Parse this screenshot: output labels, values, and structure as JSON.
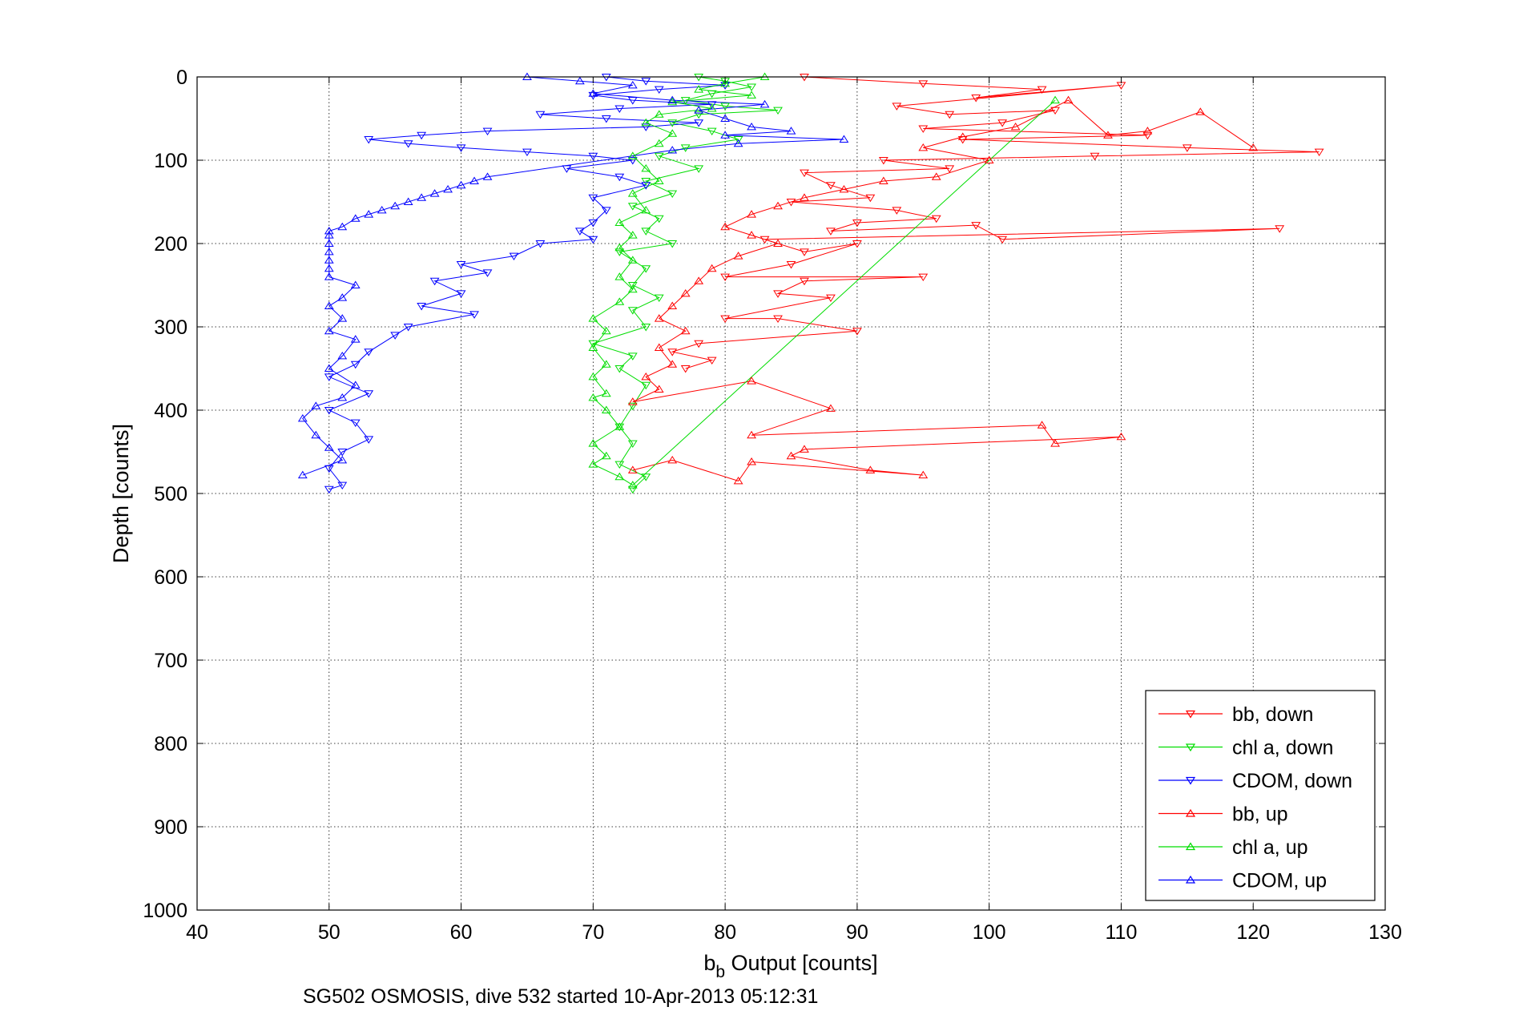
{
  "chart_data": {
    "type": "scatter",
    "title": "",
    "xlabel_main": "b",
    "xlabel_sub": "b",
    "xlabel_rest": " Output [counts]",
    "ylabel": "Depth [counts]",
    "caption": "SG502 OSMOSIS, dive 532 started 10-Apr-2013 05:12:31",
    "xlim": [
      40,
      130
    ],
    "ylim": [
      0,
      1000
    ],
    "y_reversed": true,
    "grid": true,
    "legend_position": "bottom-right",
    "xticks": [
      "40",
      "50",
      "60",
      "70",
      "80",
      "90",
      "100",
      "110",
      "120",
      "130"
    ],
    "yticks": [
      "0",
      "100",
      "200",
      "300",
      "400",
      "500",
      "600",
      "700",
      "800",
      "900",
      "1000"
    ],
    "series": [
      {
        "name": "bb, down",
        "color": "#ff0000",
        "marker": "triangle-down",
        "points": [
          [
            86,
            0
          ],
          [
            95,
            8
          ],
          [
            104,
            15
          ],
          [
            99,
            25
          ],
          [
            110,
            10
          ],
          [
            93,
            35
          ],
          [
            97,
            45
          ],
          [
            105,
            40
          ],
          [
            101,
            55
          ],
          [
            95,
            62
          ],
          [
            112,
            70
          ],
          [
            98,
            75
          ],
          [
            115,
            85
          ],
          [
            125,
            90
          ],
          [
            108,
            95
          ],
          [
            92,
            100
          ],
          [
            97,
            110
          ],
          [
            86,
            115
          ],
          [
            88,
            130
          ],
          [
            91,
            145
          ],
          [
            85,
            150
          ],
          [
            93,
            160
          ],
          [
            96,
            170
          ],
          [
            90,
            175
          ],
          [
            88,
            185
          ],
          [
            99,
            178
          ],
          [
            101,
            195
          ],
          [
            122,
            182
          ],
          [
            83,
            195
          ],
          [
            86,
            210
          ],
          [
            90,
            200
          ],
          [
            85,
            225
          ],
          [
            80,
            240
          ],
          [
            95,
            240
          ],
          [
            86,
            245
          ],
          [
            84,
            260
          ],
          [
            88,
            265
          ],
          [
            80,
            290
          ],
          [
            84,
            290
          ],
          [
            90,
            305
          ],
          [
            78,
            320
          ],
          [
            76,
            330
          ],
          [
            79,
            340
          ],
          [
            77,
            350
          ]
        ]
      },
      {
        "name": "chl a, down",
        "color": "#00dd00",
        "marker": "triangle-down",
        "points": [
          [
            78,
            0
          ],
          [
            80,
            5
          ],
          [
            82,
            12
          ],
          [
            79,
            20
          ],
          [
            77,
            28
          ],
          [
            80,
            35
          ],
          [
            84,
            40
          ],
          [
            78,
            45
          ],
          [
            76,
            55
          ],
          [
            79,
            65
          ],
          [
            81,
            75
          ],
          [
            77,
            85
          ],
          [
            75,
            95
          ],
          [
            78,
            110
          ],
          [
            74,
            125
          ],
          [
            76,
            140
          ],
          [
            73,
            155
          ],
          [
            75,
            170
          ],
          [
            74,
            185
          ],
          [
            76,
            200
          ],
          [
            72,
            210
          ],
          [
            74,
            230
          ],
          [
            73,
            250
          ],
          [
            75,
            265
          ],
          [
            73,
            280
          ],
          [
            74,
            300
          ],
          [
            70,
            320
          ],
          [
            73,
            335
          ],
          [
            72,
            350
          ],
          [
            74,
            370
          ],
          [
            73,
            395
          ],
          [
            72,
            420
          ],
          [
            73,
            440
          ],
          [
            72,
            465
          ],
          [
            74,
            480
          ],
          [
            73,
            495
          ]
        ]
      },
      {
        "name": "CDOM, down",
        "color": "#0000ff",
        "marker": "triangle-down",
        "points": [
          [
            71,
            0
          ],
          [
            74,
            5
          ],
          [
            80,
            10
          ],
          [
            75,
            15
          ],
          [
            70,
            22
          ],
          [
            73,
            28
          ],
          [
            79,
            33
          ],
          [
            72,
            38
          ],
          [
            66,
            45
          ],
          [
            71,
            50
          ],
          [
            78,
            55
          ],
          [
            74,
            60
          ],
          [
            62,
            65
          ],
          [
            57,
            70
          ],
          [
            53,
            75
          ],
          [
            56,
            80
          ],
          [
            60,
            85
          ],
          [
            65,
            90
          ],
          [
            70,
            95
          ],
          [
            73,
            100
          ],
          [
            68,
            110
          ],
          [
            72,
            120
          ],
          [
            74,
            130
          ],
          [
            70,
            145
          ],
          [
            71,
            160
          ],
          [
            70,
            175
          ],
          [
            69,
            185
          ],
          [
            70,
            195
          ],
          [
            66,
            200
          ],
          [
            64,
            215
          ],
          [
            60,
            225
          ],
          [
            62,
            235
          ],
          [
            58,
            245
          ],
          [
            60,
            260
          ],
          [
            57,
            275
          ],
          [
            61,
            285
          ],
          [
            56,
            300
          ],
          [
            55,
            310
          ],
          [
            53,
            330
          ],
          [
            52,
            345
          ],
          [
            50,
            360
          ],
          [
            53,
            380
          ],
          [
            50,
            400
          ],
          [
            52,
            415
          ],
          [
            53,
            435
          ],
          [
            51,
            450
          ],
          [
            50,
            470
          ],
          [
            51,
            490
          ],
          [
            50,
            495
          ]
        ]
      },
      {
        "name": "bb, up",
        "color": "#ff0000",
        "marker": "triangle-up",
        "points": [
          [
            120,
            85
          ],
          [
            116,
            42
          ],
          [
            112,
            65
          ],
          [
            109,
            70
          ],
          [
            106,
            28
          ],
          [
            102,
            60
          ],
          [
            98,
            72
          ],
          [
            95,
            85
          ],
          [
            100,
            100
          ],
          [
            96,
            120
          ],
          [
            92,
            125
          ],
          [
            89,
            135
          ],
          [
            86,
            145
          ],
          [
            84,
            155
          ],
          [
            82,
            165
          ],
          [
            80,
            180
          ],
          [
            82,
            190
          ],
          [
            84,
            200
          ],
          [
            81,
            215
          ],
          [
            79,
            230
          ],
          [
            78,
            245
          ],
          [
            77,
            260
          ],
          [
            76,
            275
          ],
          [
            75,
            290
          ],
          [
            77,
            305
          ],
          [
            75,
            325
          ],
          [
            76,
            345
          ],
          [
            74,
            360
          ],
          [
            75,
            375
          ],
          [
            73,
            390
          ],
          [
            82,
            365
          ],
          [
            88,
            398
          ],
          [
            82,
            430
          ],
          [
            104,
            418
          ],
          [
            105,
            440
          ],
          [
            110,
            432
          ],
          [
            86,
            447
          ],
          [
            85,
            455
          ],
          [
            91,
            472
          ],
          [
            95,
            478
          ],
          [
            82,
            462
          ],
          [
            81,
            485
          ],
          [
            76,
            460
          ],
          [
            73,
            472
          ]
        ]
      },
      {
        "name": "chl a, up",
        "color": "#00dd00",
        "marker": "triangle-up",
        "points": [
          [
            83,
            0
          ],
          [
            80,
            8
          ],
          [
            78,
            15
          ],
          [
            82,
            22
          ],
          [
            76,
            30
          ],
          [
            79,
            38
          ],
          [
            75,
            45
          ],
          [
            74,
            55
          ],
          [
            76,
            68
          ],
          [
            75,
            80
          ],
          [
            73,
            95
          ],
          [
            74,
            110
          ],
          [
            75,
            125
          ],
          [
            73,
            140
          ],
          [
            74,
            160
          ],
          [
            72,
            175
          ],
          [
            73,
            190
          ],
          [
            72,
            205
          ],
          [
            73,
            220
          ],
          [
            72,
            240
          ],
          [
            73,
            255
          ],
          [
            72,
            270
          ],
          [
            70,
            290
          ],
          [
            71,
            305
          ],
          [
            70,
            325
          ],
          [
            71,
            345
          ],
          [
            70,
            360
          ],
          [
            71,
            380
          ],
          [
            70,
            385
          ],
          [
            71,
            400
          ],
          [
            72,
            420
          ],
          [
            70,
            440
          ],
          [
            71,
            455
          ],
          [
            70,
            465
          ],
          [
            72,
            480
          ],
          [
            73,
            490
          ],
          [
            105,
            28
          ]
        ]
      },
      {
        "name": "CDOM, up",
        "color": "#0000ff",
        "marker": "triangle-up",
        "points": [
          [
            65,
            0
          ],
          [
            69,
            5
          ],
          [
            73,
            10
          ],
          [
            70,
            20
          ],
          [
            76,
            28
          ],
          [
            83,
            33
          ],
          [
            78,
            40
          ],
          [
            80,
            50
          ],
          [
            82,
            60
          ],
          [
            85,
            65
          ],
          [
            80,
            70
          ],
          [
            89,
            75
          ],
          [
            81,
            80
          ],
          [
            76,
            88
          ],
          [
            62,
            120
          ],
          [
            61,
            125
          ],
          [
            60,
            130
          ],
          [
            59,
            135
          ],
          [
            58,
            140
          ],
          [
            57,
            145
          ],
          [
            56,
            150
          ],
          [
            55,
            155
          ],
          [
            54,
            160
          ],
          [
            53,
            165
          ],
          [
            52,
            170
          ],
          [
            51,
            180
          ],
          [
            50,
            185
          ],
          [
            50,
            190
          ],
          [
            50,
            200
          ],
          [
            50,
            210
          ],
          [
            50,
            220
          ],
          [
            50,
            230
          ],
          [
            50,
            240
          ],
          [
            52,
            250
          ],
          [
            51,
            265
          ],
          [
            50,
            275
          ],
          [
            51,
            290
          ],
          [
            50,
            305
          ],
          [
            52,
            315
          ],
          [
            51,
            335
          ],
          [
            50,
            350
          ],
          [
            52,
            370
          ],
          [
            51,
            385
          ],
          [
            49,
            395
          ],
          [
            48,
            410
          ],
          [
            49,
            430
          ],
          [
            50,
            445
          ],
          [
            51,
            460
          ],
          [
            48,
            478
          ]
        ]
      }
    ]
  }
}
